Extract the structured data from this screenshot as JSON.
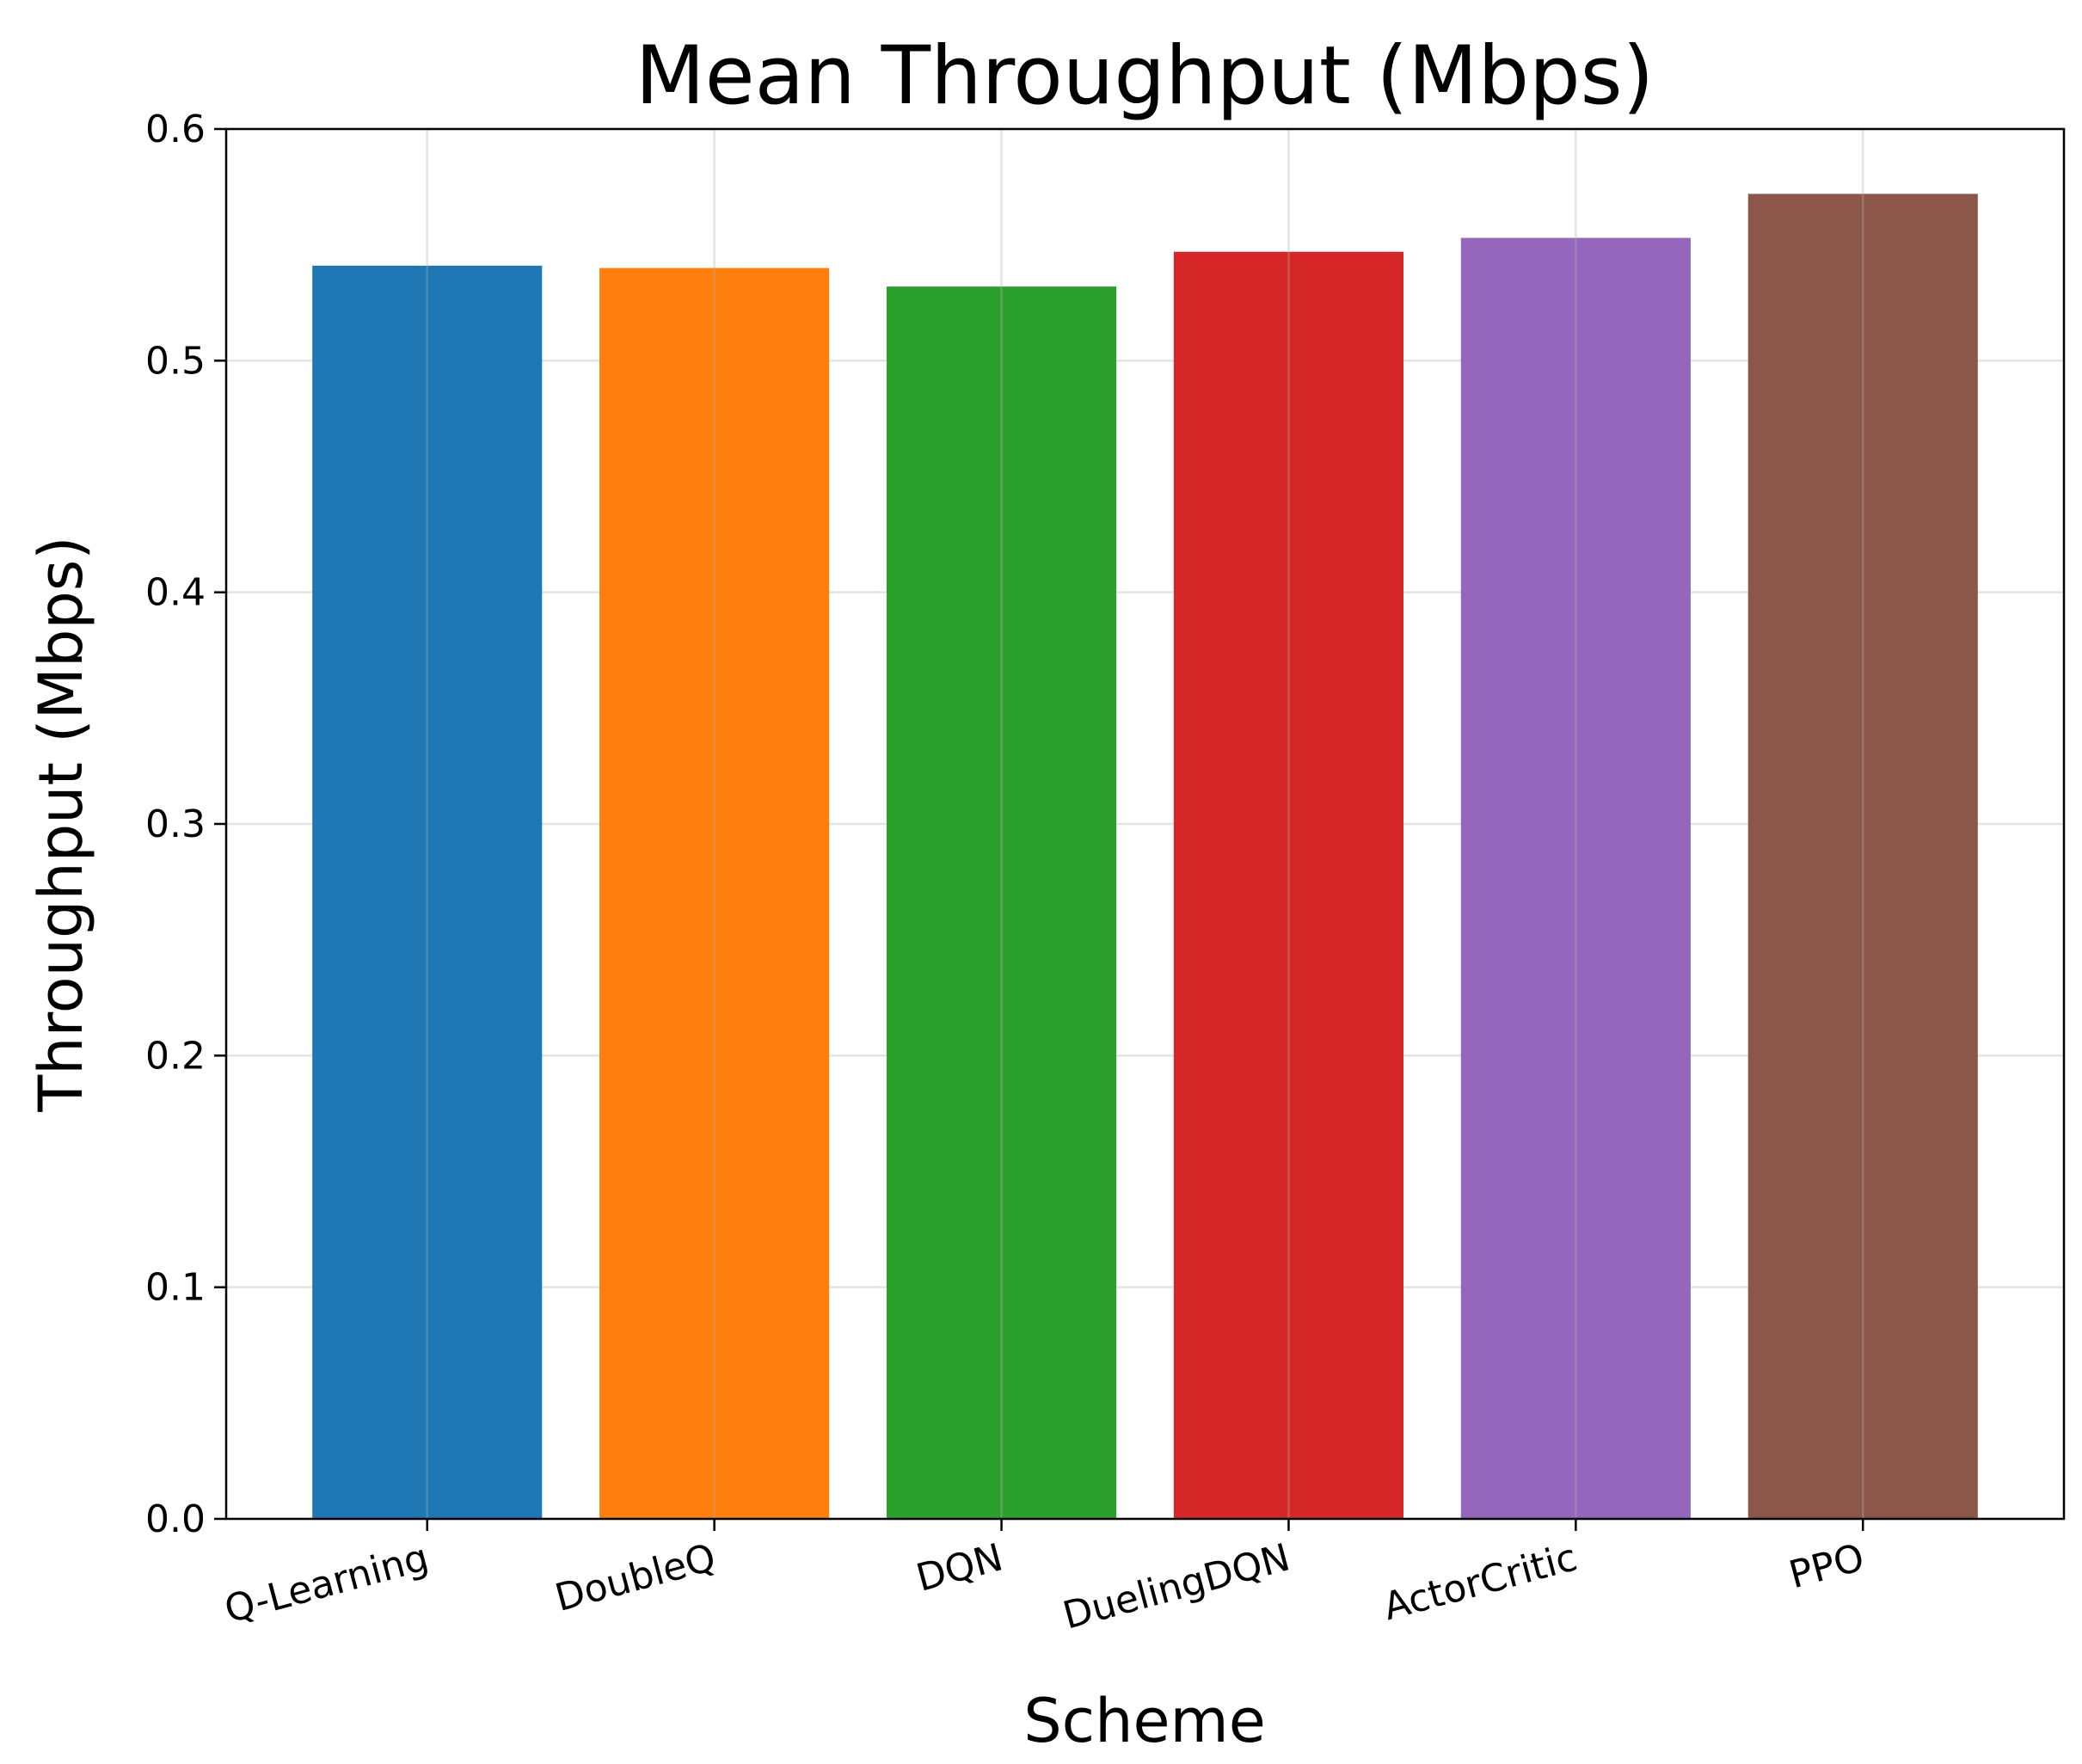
{
  "chart_data": {
    "type": "bar",
    "title": "Mean Throughput (Mbps)",
    "xlabel": "Scheme",
    "ylabel": "Throughput (Mbps)",
    "categories": [
      "Q-Learning",
      "DoubleQ",
      "DQN",
      "DuelingDQN",
      "ActorCritic",
      "PPO"
    ],
    "values": [
      0.541,
      0.54,
      0.532,
      0.547,
      0.553,
      0.572
    ],
    "colors": [
      "#1f77b4",
      "#ff7f0e",
      "#2ca02c",
      "#d62728",
      "#9467bd",
      "#8c564b"
    ],
    "ylim": [
      0,
      0.6
    ],
    "yticks": [
      "0.0",
      "0.1",
      "0.2",
      "0.3",
      "0.4",
      "0.5",
      "0.6"
    ],
    "grid": true,
    "xtick_rotation": 15
  }
}
